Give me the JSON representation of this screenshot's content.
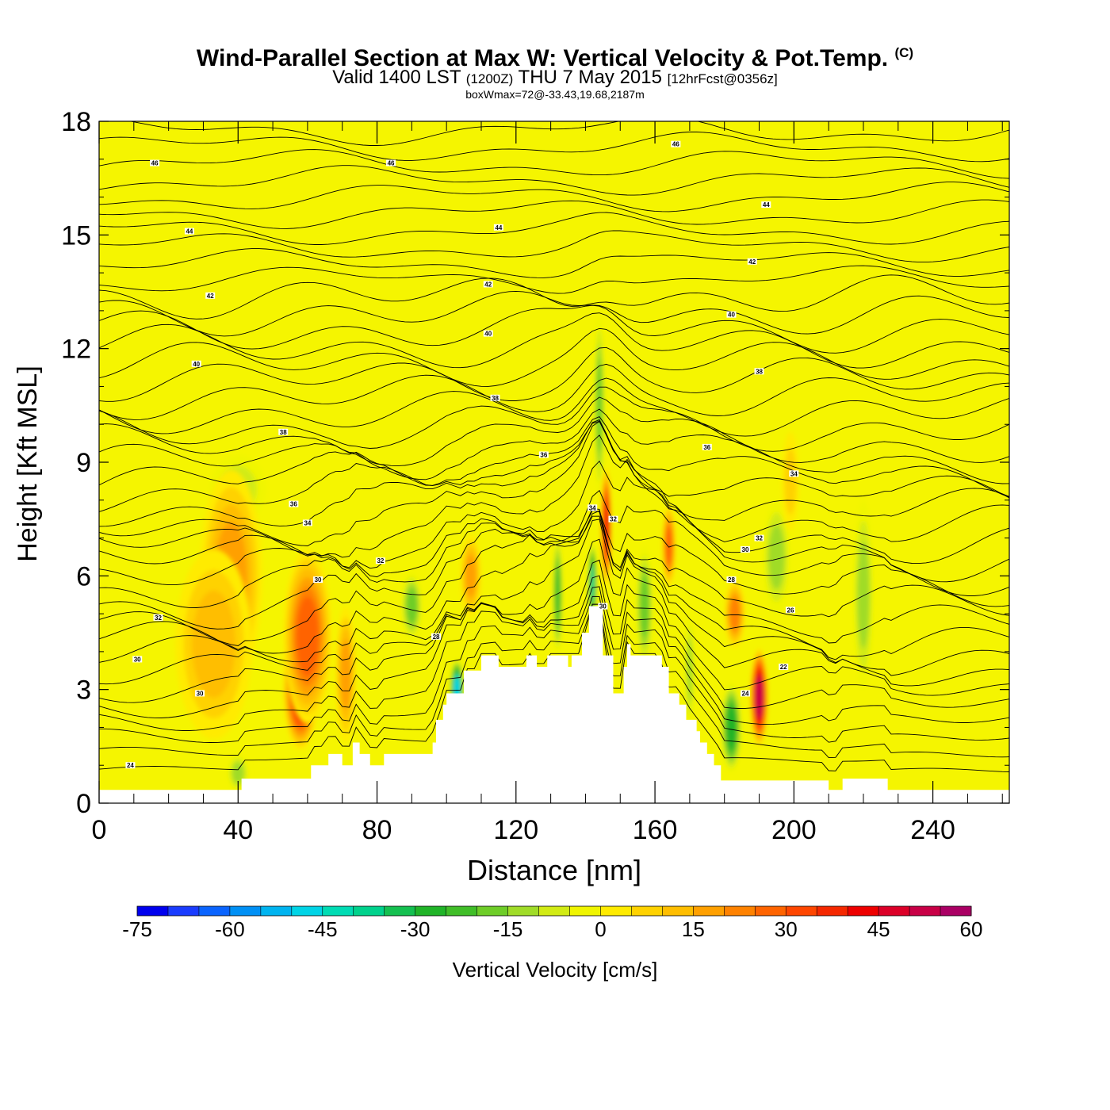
{
  "chart_data": {
    "type": "heatmap",
    "title": "Wind-Parallel Section at Max W: Vertical Velocity & Pot.Temp.",
    "title_mark": "(C)",
    "subtitle_main": "Valid 1400 LST",
    "subtitle_zulu": "(1200Z)",
    "subtitle_date": "THU 7 May 2015",
    "subtitle_forecast": "[12hrFcst@0356z]",
    "note": "boxWmax=72@-33.43,19.68,2187m",
    "xlabel": "Distance [nm]",
    "ylabel": "Height [Kft MSL]",
    "xlim": [
      0,
      262
    ],
    "ylim": [
      0,
      18
    ],
    "xticks": [
      "0",
      "40",
      "80",
      "120",
      "160",
      "200",
      "240"
    ],
    "yticks": [
      "0",
      "3",
      "6",
      "9",
      "12",
      "15",
      "18"
    ],
    "colorbar": {
      "label": "Vertical Velocity [cm/s]",
      "ticks": [
        "-75",
        "-60",
        "-45",
        "-30",
        "-15",
        "0",
        "15",
        "30",
        "45",
        "60"
      ],
      "range": [
        -75,
        60
      ],
      "step": 5,
      "colors": [
        "#0000ee",
        "#1a3cff",
        "#0a64ff",
        "#0090f5",
        "#00b4f0",
        "#00d4e6",
        "#00dcb4",
        "#00d28c",
        "#14c050",
        "#20b428",
        "#40be28",
        "#6ecd28",
        "#a0dc28",
        "#d2eb14",
        "#f0f500",
        "#ffeb00",
        "#ffd200",
        "#ffbe00",
        "#ffa000",
        "#ff8200",
        "#ff6400",
        "#ff4600",
        "#f52800",
        "#ee0000",
        "#dc0028",
        "#c80046",
        "#aa0064"
      ]
    },
    "terrain_profile": {
      "distance_nm": [
        0,
        41,
        41,
        61,
        61,
        66,
        66,
        70,
        70,
        73,
        73,
        75,
        75,
        78,
        78,
        80,
        80,
        82,
        82,
        86,
        86,
        96,
        96,
        97,
        97,
        99,
        99,
        100,
        100,
        103,
        103,
        105,
        105,
        110,
        110,
        115,
        115,
        120,
        120,
        121,
        121,
        123,
        123,
        126,
        126,
        129,
        129,
        131,
        131,
        135,
        135,
        136,
        136,
        139,
        139,
        141,
        141,
        142,
        142,
        145,
        145,
        148,
        148,
        151,
        151,
        152,
        152,
        153,
        153,
        162,
        162,
        164,
        164,
        167,
        167,
        169,
        169,
        172,
        172,
        173,
        173,
        175,
        175,
        177,
        177,
        179,
        179,
        182,
        182,
        185,
        185,
        187,
        187,
        192,
        192,
        197,
        197,
        210,
        210,
        214,
        214,
        219,
        219,
        227,
        227,
        262
      ],
      "height_kft": [
        0.35,
        0.35,
        0.65,
        0.65,
        1.0,
        1.0,
        1.3,
        1.3,
        1.0,
        1.0,
        1.6,
        1.6,
        1.3,
        1.3,
        1.0,
        1.0,
        1.0,
        1.0,
        1.3,
        1.3,
        1.3,
        1.3,
        1.6,
        1.6,
        2.2,
        2.2,
        2.6,
        2.6,
        2.9,
        2.9,
        2.9,
        2.9,
        3.5,
        3.5,
        3.9,
        3.9,
        3.6,
        3.6,
        3.6,
        3.6,
        3.6,
        3.6,
        3.9,
        3.9,
        3.6,
        3.6,
        3.9,
        3.9,
        3.9,
        3.9,
        3.6,
        3.6,
        3.9,
        3.9,
        4.5,
        4.5,
        5.2,
        5.2,
        5.2,
        5.2,
        3.9,
        3.9,
        2.9,
        2.9,
        3.6,
        3.6,
        4.2,
        4.2,
        3.9,
        3.9,
        3.6,
        3.6,
        2.9,
        2.9,
        2.6,
        2.6,
        2.2,
        2.2,
        1.9,
        1.9,
        1.6,
        1.6,
        1.3,
        1.3,
        1.0,
        1.0,
        0.6,
        0.6,
        0.6,
        0.6,
        0.6,
        0.6,
        0.6,
        0.6,
        0.6,
        0.6,
        0.6,
        0.6,
        0.35,
        0.35,
        0.65,
        0.65,
        0.65,
        0.65,
        0.35,
        0.35
      ]
    },
    "updraft_cells": [
      {
        "x_nm": 58,
        "z_kft": 3.0,
        "w_cms": 45,
        "rx_nm": 5,
        "rz_kft": 1.6
      },
      {
        "x_nm": 60,
        "z_kft": 4.4,
        "w_cms": 30,
        "rx_nm": 7,
        "rz_kft": 2.3
      },
      {
        "x_nm": 38,
        "z_kft": 6.0,
        "w_cms": 22,
        "rx_nm": 9,
        "rz_kft": 2.8
      },
      {
        "x_nm": 33,
        "z_kft": 4.2,
        "w_cms": 14,
        "rx_nm": 11,
        "rz_kft": 2.5
      },
      {
        "x_nm": 107,
        "z_kft": 6.0,
        "w_cms": 22,
        "rx_nm": 3,
        "rz_kft": 1.1
      },
      {
        "x_nm": 146,
        "z_kft": 7.3,
        "w_cms": 46,
        "rx_nm": 1.6,
        "rz_kft": 1.6
      },
      {
        "x_nm": 190,
        "z_kft": 2.8,
        "w_cms": 55,
        "rx_nm": 2.6,
        "rz_kft": 1.3
      },
      {
        "x_nm": 183,
        "z_kft": 5.0,
        "w_cms": 24,
        "rx_nm": 3,
        "rz_kft": 0.9
      },
      {
        "x_nm": 164,
        "z_kft": 6.8,
        "w_cms": 28,
        "rx_nm": 2,
        "rz_kft": 1.1
      },
      {
        "x_nm": 199,
        "z_kft": 8.5,
        "w_cms": 12,
        "rx_nm": 2.5,
        "rz_kft": 1.3
      },
      {
        "x_nm": 71,
        "z_kft": 3.4,
        "w_cms": 18,
        "rx_nm": 3,
        "rz_kft": 1.8
      }
    ],
    "downdraft_cells": [
      {
        "x_nm": 103,
        "z_kft": 3.0,
        "w_cms": -48,
        "rx_nm": 2,
        "rz_kft": 0.8
      },
      {
        "x_nm": 142,
        "z_kft": 5.8,
        "w_cms": -42,
        "rx_nm": 1.3,
        "rz_kft": 1.1
      },
      {
        "x_nm": 182,
        "z_kft": 2.0,
        "w_cms": -30,
        "rx_nm": 3,
        "rz_kft": 1.2
      },
      {
        "x_nm": 144,
        "z_kft": 10.5,
        "w_cms": -22,
        "rx_nm": 1.6,
        "rz_kft": 2.4
      },
      {
        "x_nm": 132,
        "z_kft": 5.5,
        "w_cms": -25,
        "rx_nm": 1.5,
        "rz_kft": 1.6
      },
      {
        "x_nm": 157,
        "z_kft": 5.2,
        "w_cms": -20,
        "rx_nm": 2.5,
        "rz_kft": 1.6
      },
      {
        "x_nm": 90,
        "z_kft": 5.2,
        "w_cms": -18,
        "rx_nm": 3,
        "rz_kft": 0.9
      },
      {
        "x_nm": 40,
        "z_kft": 8.3,
        "w_cms": -12,
        "rx_nm": 8,
        "rz_kft": 0.9
      },
      {
        "x_nm": 220,
        "z_kft": 5.5,
        "w_cms": -13,
        "rx_nm": 3,
        "rz_kft": 2.5
      },
      {
        "x_nm": 195,
        "z_kft": 6.5,
        "w_cms": -15,
        "rx_nm": 4,
        "rz_kft": 1.5
      },
      {
        "x_nm": 170,
        "z_kft": 3.5,
        "w_cms": -16,
        "rx_nm": 1.3,
        "rz_kft": 1.5
      },
      {
        "x_nm": 40,
        "z_kft": 0.8,
        "w_cms": -15,
        "rx_nm": 3,
        "rz_kft": 0.5
      }
    ],
    "pot_temp_contour_labels": [
      {
        "x_nm": 16,
        "z_kft": 16.9,
        "label": "46"
      },
      {
        "x_nm": 84,
        "z_kft": 16.9,
        "label": "46"
      },
      {
        "x_nm": 166,
        "z_kft": 17.4,
        "label": "46"
      },
      {
        "x_nm": 26,
        "z_kft": 15.1,
        "label": "44"
      },
      {
        "x_nm": 115,
        "z_kft": 15.2,
        "label": "44"
      },
      {
        "x_nm": 192,
        "z_kft": 15.8,
        "label": "44"
      },
      {
        "x_nm": 32,
        "z_kft": 13.4,
        "label": "42"
      },
      {
        "x_nm": 112,
        "z_kft": 13.7,
        "label": "42"
      },
      {
        "x_nm": 188,
        "z_kft": 14.3,
        "label": "42"
      },
      {
        "x_nm": 28,
        "z_kft": 11.6,
        "label": "40"
      },
      {
        "x_nm": 112,
        "z_kft": 12.4,
        "label": "40"
      },
      {
        "x_nm": 182,
        "z_kft": 12.9,
        "label": "40"
      },
      {
        "x_nm": 114,
        "z_kft": 10.7,
        "label": "38"
      },
      {
        "x_nm": 190,
        "z_kft": 11.4,
        "label": "38"
      },
      {
        "x_nm": 53,
        "z_kft": 9.8,
        "label": "38"
      },
      {
        "x_nm": 128,
        "z_kft": 9.2,
        "label": "36"
      },
      {
        "x_nm": 175,
        "z_kft": 9.4,
        "label": "36"
      },
      {
        "x_nm": 56,
        "z_kft": 7.9,
        "label": "36"
      },
      {
        "x_nm": 60,
        "z_kft": 7.4,
        "label": "34"
      },
      {
        "x_nm": 142,
        "z_kft": 7.8,
        "label": "34"
      },
      {
        "x_nm": 200,
        "z_kft": 8.7,
        "label": "34"
      },
      {
        "x_nm": 81,
        "z_kft": 6.4,
        "label": "32"
      },
      {
        "x_nm": 148,
        "z_kft": 7.5,
        "label": "32"
      },
      {
        "x_nm": 190,
        "z_kft": 7.0,
        "label": "32"
      },
      {
        "x_nm": 17,
        "z_kft": 4.9,
        "label": "32"
      },
      {
        "x_nm": 63,
        "z_kft": 5.9,
        "label": "30"
      },
      {
        "x_nm": 145,
        "z_kft": 5.2,
        "label": "30"
      },
      {
        "x_nm": 186,
        "z_kft": 6.7,
        "label": "30"
      },
      {
        "x_nm": 11,
        "z_kft": 3.8,
        "label": "30"
      },
      {
        "x_nm": 29,
        "z_kft": 2.9,
        "label": "30"
      },
      {
        "x_nm": 97,
        "z_kft": 4.4,
        "label": "28"
      },
      {
        "x_nm": 182,
        "z_kft": 5.9,
        "label": "28"
      },
      {
        "x_nm": 199,
        "z_kft": 5.1,
        "label": "26"
      },
      {
        "x_nm": 186,
        "z_kft": 2.9,
        "label": "24"
      },
      {
        "x_nm": 197,
        "z_kft": 3.6,
        "label": "22"
      },
      {
        "x_nm": 9,
        "z_kft": 1.0,
        "label": "24"
      }
    ]
  }
}
